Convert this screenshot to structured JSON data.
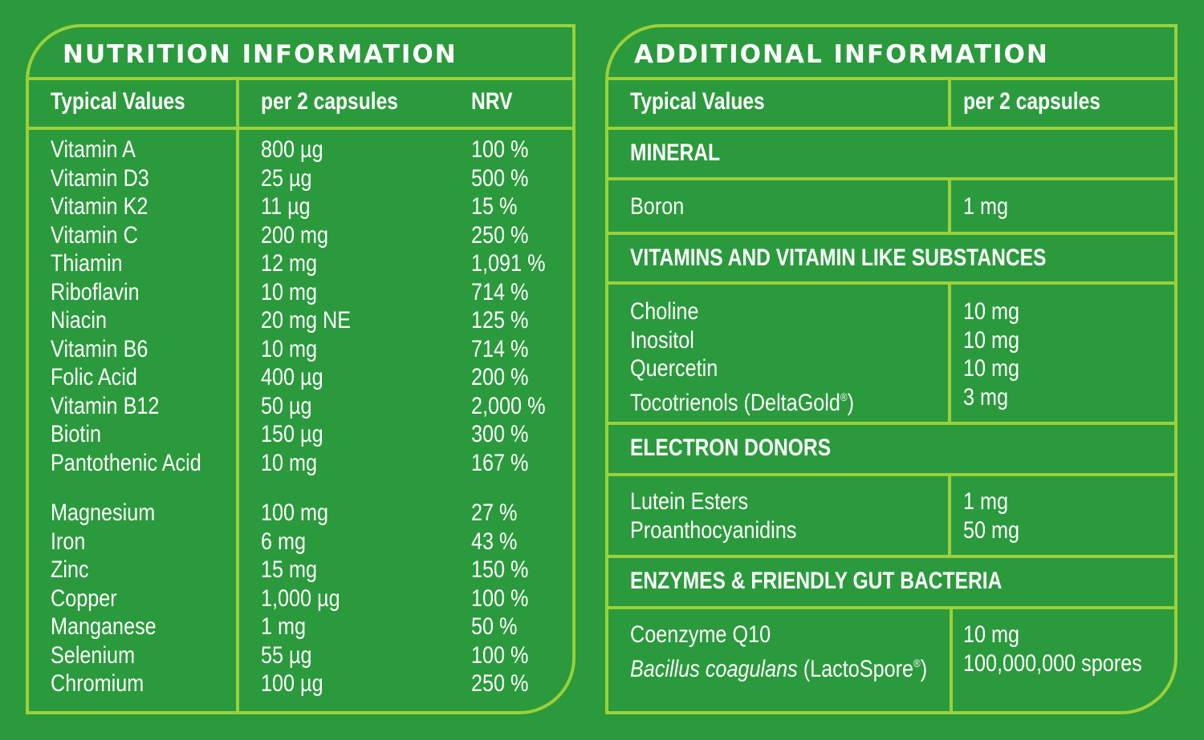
{
  "nutrition": {
    "title": "NUTRITION INFORMATION",
    "headers": {
      "typical": "Typical Values",
      "per": "per 2 capsules",
      "nrv": "NRV"
    },
    "vitamins": [
      {
        "name": "Vitamin A",
        "amount": "800 µg",
        "nrv": "100 %"
      },
      {
        "name": "Vitamin D3",
        "amount": "25 µg",
        "nrv": "500 %"
      },
      {
        "name": "Vitamin K2",
        "amount": "11 µg",
        "nrv": "15 %"
      },
      {
        "name": "Vitamin C",
        "amount": "200 mg",
        "nrv": "250 %"
      },
      {
        "name": "Thiamin",
        "amount": "12 mg",
        "nrv": "1,091 %"
      },
      {
        "name": "Riboflavin",
        "amount": "10 mg",
        "nrv": "714 %"
      },
      {
        "name": "Niacin",
        "amount": "20 mg NE",
        "nrv": "125 %"
      },
      {
        "name": "Vitamin B6",
        "amount": "10 mg",
        "nrv": "714 %"
      },
      {
        "name": "Folic Acid",
        "amount": "400 µg",
        "nrv": "200 %"
      },
      {
        "name": "Vitamin B12",
        "amount": "50 µg",
        "nrv": "2,000 %"
      },
      {
        "name": "Biotin",
        "amount": "150 µg",
        "nrv": "300 %"
      },
      {
        "name": "Pantothenic Acid",
        "amount": "10 mg",
        "nrv": "167 %"
      }
    ],
    "minerals": [
      {
        "name": "Magnesium",
        "amount": "100 mg",
        "nrv": "27 %"
      },
      {
        "name": "Iron",
        "amount": "6 mg",
        "nrv": "43 %"
      },
      {
        "name": "Zinc",
        "amount": "15 mg",
        "nrv": "150 %"
      },
      {
        "name": "Copper",
        "amount": "1,000 µg",
        "nrv": "100 %"
      },
      {
        "name": "Manganese",
        "amount": "1 mg",
        "nrv": "50 %"
      },
      {
        "name": "Selenium",
        "amount": "55 µg",
        "nrv": "100 %"
      },
      {
        "name": "Chromium",
        "amount": "100 µg",
        "nrv": "250 %"
      }
    ]
  },
  "additional": {
    "title": "ADDITIONAL  INFORMATION",
    "headers": {
      "typical": "Typical Values",
      "per": "per 2 capsules"
    },
    "sections": [
      {
        "title": "MINERAL",
        "items": [
          {
            "name": "Boron",
            "amount": "1 mg"
          }
        ]
      },
      {
        "title": "VITAMINS AND VITAMIN LIKE SUBSTANCES",
        "items": [
          {
            "name": "Choline",
            "amount": "10 mg"
          },
          {
            "name": "Inositol",
            "amount": "10 mg"
          },
          {
            "name": "Quercetin",
            "amount": "10 mg"
          },
          {
            "name": "Tocotrienols (DeltaGold",
            "sup": "®",
            "suffix": ")",
            "amount": "3 mg"
          }
        ]
      },
      {
        "title": "ELECTRON DONORS",
        "items": [
          {
            "name": "Lutein Esters",
            "amount": "1 mg"
          },
          {
            "name": "Proanthocyanidins",
            "amount": "50 mg"
          }
        ]
      },
      {
        "title": "ENZYMES & FRIENDLY GUT BACTERIA",
        "items": [
          {
            "name": "Coenzyme Q10",
            "amount": "10 mg"
          },
          {
            "name_italic": "Bacillus coagulans",
            "name": " (LactoSpore",
            "sup": "®",
            "suffix": ")",
            "amount": "100,000,000 spores"
          }
        ]
      }
    ]
  },
  "colors": {
    "background": "#2a9a3c",
    "border": "#9bd03a",
    "text": "#ffffff"
  }
}
